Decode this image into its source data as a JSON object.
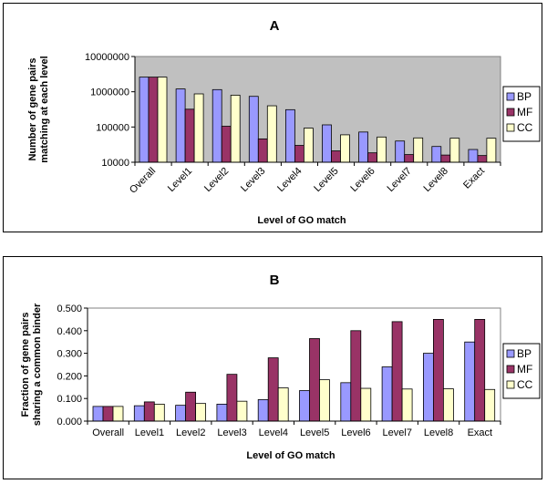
{
  "chart_data": [
    {
      "type": "bar",
      "title": "A",
      "xlabel": "Level of GO match",
      "ylabel": "Number of gene pairs matching at each level",
      "ylabel_lines": [
        "Number of gene pairs",
        "matching at each level"
      ],
      "yscale": "log",
      "ylim": [
        10000,
        10000000
      ],
      "yticks": [
        10000,
        100000,
        1000000,
        10000000
      ],
      "ytick_labels": [
        "10000",
        "100000",
        "1000000",
        "10000000"
      ],
      "grid": false,
      "legend": "right",
      "categories": [
        "Overall",
        "Level1",
        "Level2",
        "Level3",
        "Level4",
        "Level5",
        "Level6",
        "Level7",
        "Level8",
        "Exact"
      ],
      "series": [
        {
          "name": "BP",
          "color": "#9999ff",
          "values": [
            2600000,
            1200000,
            1150000,
            740000,
            310000,
            115000,
            72000,
            40000,
            28000,
            23000
          ]
        },
        {
          "name": "MF",
          "color": "#993366",
          "values": [
            2600000,
            320000,
            105000,
            46000,
            30000,
            21000,
            18500,
            16500,
            16000,
            15500
          ]
        },
        {
          "name": "CC",
          "color": "#ffffcc",
          "values": [
            2600000,
            870000,
            800000,
            400000,
            93000,
            60000,
            52000,
            49000,
            48000,
            48000
          ]
        }
      ]
    },
    {
      "type": "bar",
      "title": "B",
      "xlabel": "Level of GO match",
      "ylabel": "Fraction of gene pairs sharing a common binder",
      "ylabel_lines": [
        "Fraction of gene pairs",
        "sharing a common binder"
      ],
      "yscale": "linear",
      "ylim": [
        0,
        0.5
      ],
      "yticks": [
        0,
        0.1,
        0.2,
        0.3,
        0.4,
        0.5
      ],
      "ytick_labels": [
        "0.000",
        "0.100",
        "0.200",
        "0.300",
        "0.400",
        "0.500"
      ],
      "grid": false,
      "legend": "right",
      "categories": [
        "Overall",
        "Level1",
        "Level2",
        "Level3",
        "Level4",
        "Level5",
        "Level6",
        "Level7",
        "Level8",
        "Exact"
      ],
      "series": [
        {
          "name": "BP",
          "color": "#9999ff",
          "values": [
            0.065,
            0.068,
            0.07,
            0.075,
            0.095,
            0.135,
            0.17,
            0.24,
            0.3,
            0.35
          ]
        },
        {
          "name": "MF",
          "color": "#993366",
          "values": [
            0.065,
            0.085,
            0.128,
            0.207,
            0.28,
            0.365,
            0.4,
            0.44,
            0.45,
            0.45
          ]
        },
        {
          "name": "CC",
          "color": "#ffffcc",
          "values": [
            0.065,
            0.075,
            0.078,
            0.088,
            0.147,
            0.183,
            0.145,
            0.142,
            0.143,
            0.14
          ]
        }
      ]
    }
  ]
}
